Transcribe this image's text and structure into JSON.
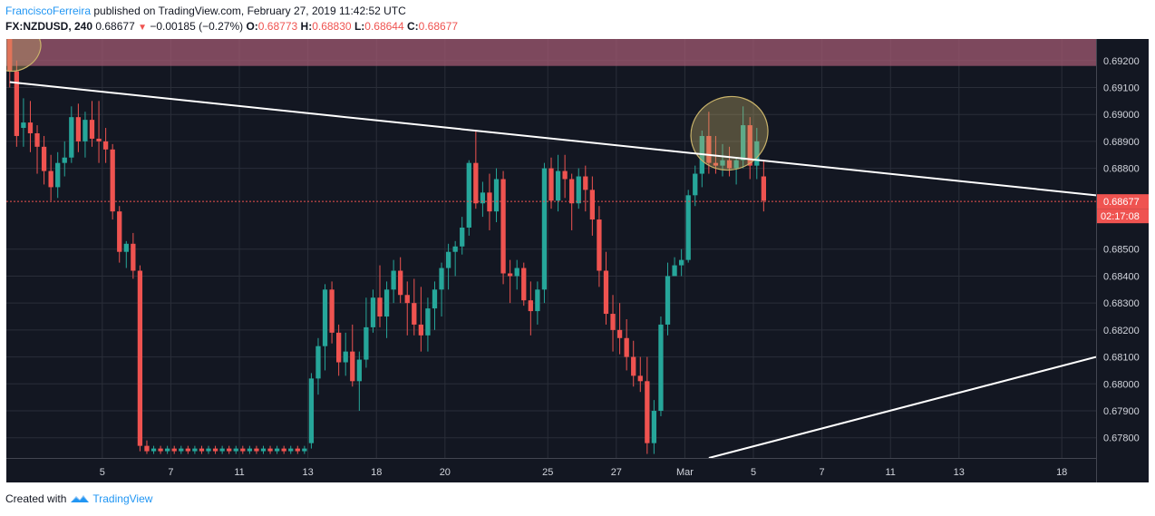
{
  "header": {
    "author": "FranciscoFerreira",
    "published_text": "published on TradingView.com, February 27, 2019 11:42:52 UTC",
    "symbol": "FX:NZDUSD, 240",
    "last": "0.68677",
    "change": "−0.00185 (−0.27%)",
    "o_label": "O:",
    "o_value": "0.68773",
    "h_label": "H:",
    "h_value": "0.68830",
    "l_label": "L:",
    "l_value": "0.68644",
    "c_label": "C:",
    "c_value": "0.68677"
  },
  "footer": {
    "created_with": "Created with",
    "brand": "TradingView"
  },
  "colors": {
    "background": "#131722",
    "grid": "#2a2e39",
    "up": "#26a69a",
    "down": "#ef5350",
    "trendline": "#ffffff",
    "resistance_zone": "#a15a72",
    "highlight_ellipse": "#c9b36a",
    "price_tag": "#ef5350"
  },
  "chart_data": {
    "type": "candlestick",
    "symbol": "FX:NZDUSD",
    "timeframe": "240",
    "ylim": [
      0.67725,
      0.6928
    ],
    "y_ticks": [
      "0.69200",
      "0.69100",
      "0.69000",
      "0.68900",
      "0.68800",
      "0.68500",
      "0.68400",
      "0.68300",
      "0.68200",
      "0.68100",
      "0.68000",
      "0.67900",
      "0.67800"
    ],
    "x_ticks": [
      {
        "label": "5",
        "index": 14.5
      },
      {
        "label": "7",
        "index": 24.5
      },
      {
        "label": "11",
        "index": 34.5
      },
      {
        "label": "13",
        "index": 44.5
      },
      {
        "label": "18",
        "index": 54.5
      },
      {
        "label": "20",
        "index": 64.5
      },
      {
        "label": "25",
        "index": 79.5
      },
      {
        "label": "27",
        "index": 89.5
      },
      {
        "label": "Mar",
        "index": 99.5
      },
      {
        "label": "5",
        "index": 109.5
      },
      {
        "label": "7",
        "index": 119.5
      },
      {
        "label": "11",
        "index": 129.5
      },
      {
        "label": "13",
        "index": 139.5
      },
      {
        "label": "18",
        "index": 154.5
      }
    ],
    "index_range": [
      0.5,
      159.5
    ],
    "candles": [
      [
        0.693,
        0.693,
        0.691,
        0.6916
      ],
      [
        0.6916,
        0.692,
        0.6888,
        0.6892
      ],
      [
        0.6895,
        0.6906,
        0.6888,
        0.6897
      ],
      [
        0.6897,
        0.6905,
        0.6886,
        0.6893
      ],
      [
        0.6893,
        0.6896,
        0.6878,
        0.6888
      ],
      [
        0.6888,
        0.6892,
        0.6874,
        0.6879
      ],
      [
        0.6879,
        0.6885,
        0.6868,
        0.6873
      ],
      [
        0.6873,
        0.6886,
        0.6869,
        0.6882
      ],
      [
        0.6882,
        0.689,
        0.6877,
        0.6884
      ],
      [
        0.6884,
        0.6903,
        0.6882,
        0.6899
      ],
      [
        0.6899,
        0.6904,
        0.6886,
        0.689
      ],
      [
        0.689,
        0.6901,
        0.6884,
        0.6898
      ],
      [
        0.6898,
        0.6905,
        0.6888,
        0.6891
      ],
      [
        0.6891,
        0.6905,
        0.6882,
        0.689
      ],
      [
        0.689,
        0.6895,
        0.6882,
        0.6887
      ],
      [
        0.6887,
        0.6889,
        0.6861,
        0.6864
      ],
      [
        0.6864,
        0.6866,
        0.6845,
        0.6849
      ],
      [
        0.6849,
        0.6853,
        0.6843,
        0.6852
      ],
      [
        0.6852,
        0.6856,
        0.6839,
        0.6842
      ],
      [
        0.6842,
        0.6844,
        0.6775,
        0.6777
      ],
      [
        0.6777,
        0.6779,
        0.6774,
        0.6775
      ],
      [
        0.6775,
        0.6777,
        0.6774,
        0.6776
      ],
      [
        0.6776,
        0.6777,
        0.6774,
        0.6775
      ],
      [
        0.6775,
        0.6777,
        0.6774,
        0.6776
      ],
      [
        0.6776,
        0.6777,
        0.6774,
        0.6775
      ],
      [
        0.6775,
        0.6777,
        0.6774,
        0.6776
      ],
      [
        0.6776,
        0.6777,
        0.6774,
        0.6775
      ],
      [
        0.6775,
        0.6777,
        0.6774,
        0.6776
      ],
      [
        0.6776,
        0.6777,
        0.6774,
        0.6775
      ],
      [
        0.6775,
        0.6777,
        0.6774,
        0.6776
      ],
      [
        0.6776,
        0.6777,
        0.6774,
        0.6775
      ],
      [
        0.6775,
        0.6777,
        0.6774,
        0.6776
      ],
      [
        0.6776,
        0.6777,
        0.6774,
        0.6775
      ],
      [
        0.6775,
        0.6777,
        0.6774,
        0.6776
      ],
      [
        0.6776,
        0.6777,
        0.6774,
        0.6775
      ],
      [
        0.6775,
        0.6777,
        0.6774,
        0.6776
      ],
      [
        0.6776,
        0.6777,
        0.6774,
        0.6775
      ],
      [
        0.6775,
        0.6777,
        0.6774,
        0.6776
      ],
      [
        0.6776,
        0.6777,
        0.6774,
        0.6775
      ],
      [
        0.6775,
        0.6777,
        0.6774,
        0.6776
      ],
      [
        0.6776,
        0.6777,
        0.6774,
        0.6775
      ],
      [
        0.6775,
        0.6777,
        0.6774,
        0.6776
      ],
      [
        0.6776,
        0.6777,
        0.6774,
        0.6775
      ],
      [
        0.6775,
        0.6777,
        0.6774,
        0.6776
      ],
      [
        0.6778,
        0.6804,
        0.6776,
        0.6802
      ],
      [
        0.6802,
        0.6817,
        0.6796,
        0.6814
      ],
      [
        0.6814,
        0.6837,
        0.6805,
        0.6835
      ],
      [
        0.6835,
        0.6838,
        0.6815,
        0.6819
      ],
      [
        0.6819,
        0.6822,
        0.6803,
        0.6808
      ],
      [
        0.6808,
        0.6819,
        0.6803,
        0.6812
      ],
      [
        0.6812,
        0.6822,
        0.6799,
        0.6801
      ],
      [
        0.6801,
        0.6812,
        0.679,
        0.6809
      ],
      [
        0.6809,
        0.6832,
        0.6806,
        0.6821
      ],
      [
        0.6821,
        0.6835,
        0.6819,
        0.6832
      ],
      [
        0.6832,
        0.6844,
        0.6821,
        0.6825
      ],
      [
        0.6825,
        0.6838,
        0.6817,
        0.6835
      ],
      [
        0.6835,
        0.6846,
        0.683,
        0.6842
      ],
      [
        0.6842,
        0.6847,
        0.683,
        0.6833
      ],
      [
        0.6833,
        0.6838,
        0.6818,
        0.683
      ],
      [
        0.683,
        0.6839,
        0.6818,
        0.6822
      ],
      [
        0.6822,
        0.6836,
        0.6812,
        0.6818
      ],
      [
        0.6818,
        0.6832,
        0.6812,
        0.6828
      ],
      [
        0.6828,
        0.6838,
        0.682,
        0.6835
      ],
      [
        0.6835,
        0.6845,
        0.6825,
        0.6843
      ],
      [
        0.6843,
        0.6852,
        0.6835,
        0.6849
      ],
      [
        0.6849,
        0.6853,
        0.684,
        0.6851
      ],
      [
        0.6851,
        0.6862,
        0.6848,
        0.6858
      ],
      [
        0.6858,
        0.6883,
        0.6855,
        0.6882
      ],
      [
        0.6882,
        0.6894,
        0.6865,
        0.6867
      ],
      [
        0.6867,
        0.6875,
        0.6862,
        0.6871
      ],
      [
        0.6871,
        0.6878,
        0.6857,
        0.6864
      ],
      [
        0.6864,
        0.688,
        0.686,
        0.6876
      ],
      [
        0.6876,
        0.6879,
        0.6837,
        0.6841
      ],
      [
        0.6841,
        0.6846,
        0.683,
        0.684
      ],
      [
        0.684,
        0.6846,
        0.6835,
        0.6843
      ],
      [
        0.6843,
        0.6845,
        0.6829,
        0.6831
      ],
      [
        0.6831,
        0.6838,
        0.6818,
        0.6827
      ],
      [
        0.6827,
        0.6838,
        0.6822,
        0.6835
      ],
      [
        0.6835,
        0.6882,
        0.683,
        0.688
      ],
      [
        0.688,
        0.6884,
        0.6865,
        0.6868
      ],
      [
        0.6868,
        0.6885,
        0.6864,
        0.6879
      ],
      [
        0.6879,
        0.6885,
        0.6869,
        0.6876
      ],
      [
        0.6876,
        0.6878,
        0.6857,
        0.6867
      ],
      [
        0.6867,
        0.688,
        0.6865,
        0.6877
      ],
      [
        0.6877,
        0.6881,
        0.6864,
        0.6872
      ],
      [
        0.6872,
        0.6877,
        0.6855,
        0.6861
      ],
      [
        0.6861,
        0.6866,
        0.6836,
        0.6842
      ],
      [
        0.6842,
        0.6849,
        0.6822,
        0.6826
      ],
      [
        0.6826,
        0.6833,
        0.6812,
        0.682
      ],
      [
        0.682,
        0.683,
        0.6811,
        0.6817
      ],
      [
        0.6817,
        0.6824,
        0.6805,
        0.681
      ],
      [
        0.681,
        0.6816,
        0.6799,
        0.6803
      ],
      [
        0.6803,
        0.681,
        0.6797,
        0.6801
      ],
      [
        0.6801,
        0.681,
        0.6774,
        0.6778
      ],
      [
        0.6778,
        0.6794,
        0.6774,
        0.679
      ],
      [
        0.679,
        0.6825,
        0.6788,
        0.6822
      ],
      [
        0.6822,
        0.6845,
        0.6818,
        0.684
      ],
      [
        0.684,
        0.6847,
        0.6841,
        0.6844
      ],
      [
        0.6844,
        0.685,
        0.684,
        0.6846
      ],
      [
        0.6846,
        0.6872,
        0.6845,
        0.687
      ],
      [
        0.687,
        0.6881,
        0.6866,
        0.6878
      ],
      [
        0.6878,
        0.6894,
        0.6873,
        0.6892
      ],
      [
        0.6892,
        0.6901,
        0.6878,
        0.6882
      ],
      [
        0.6882,
        0.6892,
        0.6878,
        0.6881
      ],
      [
        0.6881,
        0.6889,
        0.6877,
        0.6883
      ],
      [
        0.6883,
        0.6888,
        0.6877,
        0.688
      ],
      [
        0.688,
        0.6884,
        0.6874,
        0.6883
      ],
      [
        0.6883,
        0.6903,
        0.688,
        0.6896
      ],
      [
        0.6896,
        0.6899,
        0.6876,
        0.6881
      ],
      [
        0.6881,
        0.6895,
        0.6876,
        0.689
      ],
      [
        0.6877,
        0.6883,
        0.6864,
        0.6868
      ]
    ],
    "trendlines": [
      {
        "name": "descending",
        "from": [
          1,
          0.6912
        ],
        "to": [
          159.5,
          0.687
        ]
      },
      {
        "name": "ascending",
        "from": [
          103,
          0.67725
        ],
        "to": [
          159.5,
          0.681
        ]
      }
    ],
    "resistance_zone": [
      0.6918,
      0.6928
    ],
    "current_price": "0.68677",
    "countdown": "02:17:08"
  }
}
